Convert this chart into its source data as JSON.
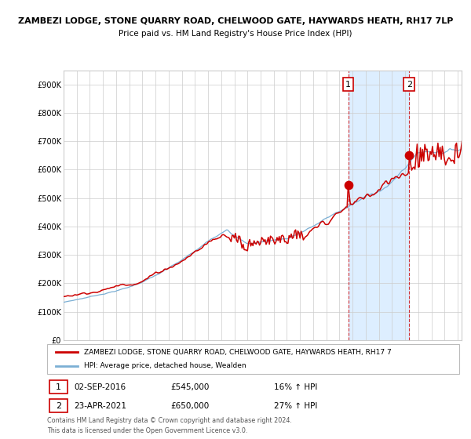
{
  "title": "ZAMBEZI LODGE, STONE QUARRY ROAD, CHELWOOD GATE, HAYWARDS HEATH, RH17 7LP",
  "subtitle": "Price paid vs. HM Land Registry's House Price Index (HPI)",
  "ylim": [
    0,
    950000
  ],
  "hpi_color": "#7bafd4",
  "price_color": "#cc0000",
  "shade_color": "#ddeeff",
  "sale1_date": "02-SEP-2016",
  "sale1_price": 545000,
  "sale1_pct": "16%",
  "sale2_date": "23-APR-2021",
  "sale2_price": 650000,
  "sale2_pct": "27%",
  "legend_label1": "ZAMBEZI LODGE, STONE QUARRY ROAD, CHELWOOD GATE, HAYWARDS HEATH, RH17 7",
  "legend_label2": "HPI: Average price, detached house, Wealden",
  "footer": "Contains HM Land Registry data © Crown copyright and database right 2024.\nThis data is licensed under the Open Government Licence v3.0.",
  "sale1_year": 2016.67,
  "sale2_year": 2021.31
}
